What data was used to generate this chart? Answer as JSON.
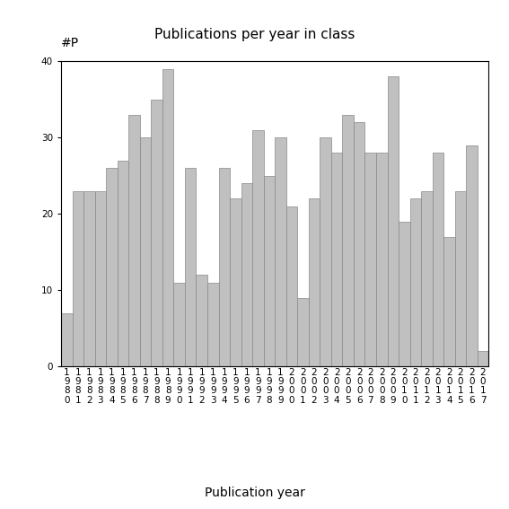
{
  "title": "Publications per year in class",
  "xlabel": "Publication year",
  "ylabel": "#P",
  "years": [
    "1980",
    "1981",
    "1982",
    "1983",
    "1984",
    "1985",
    "1986",
    "1987",
    "1988",
    "1989",
    "1990",
    "1991",
    "1992",
    "1993",
    "1994",
    "1995",
    "1996",
    "1997",
    "1998",
    "1999",
    "2000",
    "2001",
    "2002",
    "2003",
    "2004",
    "2005",
    "2006",
    "2007",
    "2008",
    "2009",
    "2010",
    "2011",
    "2012",
    "2013",
    "2014",
    "2015",
    "2016",
    "2017"
  ],
  "values": [
    7,
    23,
    23,
    23,
    26,
    27,
    33,
    30,
    35,
    39,
    11,
    26,
    12,
    11,
    26,
    22,
    24,
    31,
    25,
    30,
    21,
    9,
    22,
    30,
    28,
    33,
    32,
    28,
    28,
    38,
    19,
    22,
    23,
    28,
    17,
    23,
    29,
    2
  ],
  "ylim": [
    0,
    40
  ],
  "yticks": [
    0,
    10,
    20,
    30,
    40
  ],
  "bar_color": "#c0c0c0",
  "bar_edgecolor": "#888888",
  "bg_color": "#ffffff",
  "title_fontsize": 11,
  "label_fontsize": 10,
  "tick_fontsize": 7.5
}
